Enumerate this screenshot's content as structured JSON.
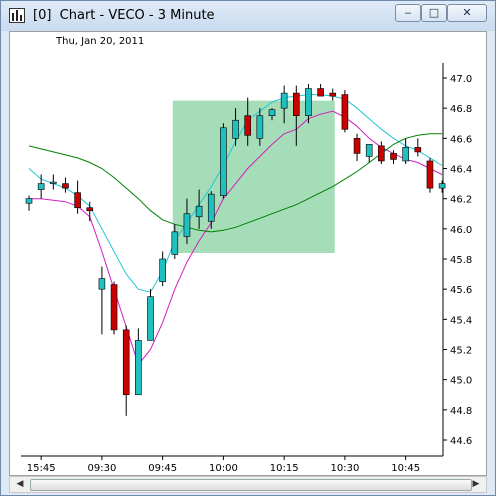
{
  "window": {
    "title": "[0]  Chart - VECO - 3 Minute",
    "minimize_glyph": "‒",
    "maximize_glyph": "□",
    "close_glyph": "✕",
    "icon": "chart-app-icon"
  },
  "chart_header": {
    "date": "Thu, Jan 20, 2011"
  },
  "scrollbar": {
    "left_arrow": "◀",
    "right_arrow": "▶"
  },
  "chart_data": {
    "type": "candlestick",
    "title": "",
    "xlabel": "",
    "ylabel": "",
    "ylim": [
      44.5,
      47.2
    ],
    "y_ticks": [
      44.6,
      44.8,
      45.0,
      45.2,
      45.4,
      45.6,
      45.8,
      46.0,
      46.2,
      46.4,
      46.6,
      46.8,
      47.0
    ],
    "x_tick_labels": [
      "15:45",
      "09:30",
      "09:45",
      "10:00",
      "10:15",
      "10:30",
      "10:45"
    ],
    "colors": {
      "up": "#20c0c0",
      "down": "#c80000",
      "wick": "#000000",
      "band_fast": "#20c8d8",
      "band_slow": "#d020c0",
      "trend": "#008000",
      "highlight": "#8fd4a8"
    },
    "highlight_zone": {
      "from": "09:48",
      "to": "10:27",
      "low": 45.84,
      "high": 46.85
    },
    "candles": [
      {
        "o": 46.17,
        "h": 46.22,
        "l": 46.12,
        "c": 46.2
      },
      {
        "o": 46.26,
        "h": 46.36,
        "l": 46.2,
        "c": 46.3
      },
      {
        "o": 46.3,
        "h": 46.36,
        "l": 46.26,
        "c": 46.31
      },
      {
        "o": 46.3,
        "h": 46.34,
        "l": 46.24,
        "c": 46.27
      },
      {
        "o": 46.24,
        "h": 46.32,
        "l": 46.1,
        "c": 46.14
      },
      {
        "o": 46.14,
        "h": 46.18,
        "l": 46.05,
        "c": 46.12
      },
      {
        "o": 45.6,
        "h": 45.75,
        "l": 45.3,
        "c": 45.67
      },
      {
        "o": 45.63,
        "h": 45.65,
        "l": 45.3,
        "c": 45.33
      },
      {
        "o": 45.33,
        "h": 45.36,
        "l": 44.76,
        "c": 44.9
      },
      {
        "o": 44.9,
        "h": 45.34,
        "l": 44.9,
        "c": 45.26
      },
      {
        "o": 45.26,
        "h": 45.6,
        "l": 45.26,
        "c": 45.55
      },
      {
        "o": 45.65,
        "h": 45.85,
        "l": 45.62,
        "c": 45.8
      },
      {
        "o": 45.83,
        "h": 46.03,
        "l": 45.8,
        "c": 45.98
      },
      {
        "o": 45.95,
        "h": 46.2,
        "l": 45.9,
        "c": 46.1
      },
      {
        "o": 46.08,
        "h": 46.26,
        "l": 46.0,
        "c": 46.15
      },
      {
        "o": 46.05,
        "h": 46.25,
        "l": 46.0,
        "c": 46.23
      },
      {
        "o": 46.22,
        "h": 46.7,
        "l": 46.2,
        "c": 46.67
      },
      {
        "o": 46.6,
        "h": 46.8,
        "l": 46.55,
        "c": 46.72
      },
      {
        "o": 46.75,
        "h": 46.87,
        "l": 46.55,
        "c": 46.62
      },
      {
        "o": 46.6,
        "h": 46.8,
        "l": 46.55,
        "c": 46.75
      },
      {
        "o": 46.75,
        "h": 46.8,
        "l": 46.72,
        "c": 46.79
      },
      {
        "o": 46.8,
        "h": 46.95,
        "l": 46.7,
        "c": 46.9
      },
      {
        "o": 46.9,
        "h": 46.95,
        "l": 46.55,
        "c": 46.75
      },
      {
        "o": 46.75,
        "h": 46.96,
        "l": 46.7,
        "c": 46.93
      },
      {
        "o": 46.93,
        "h": 46.96,
        "l": 46.88,
        "c": 46.88
      },
      {
        "o": 46.9,
        "h": 46.93,
        "l": 46.85,
        "c": 46.88
      },
      {
        "o": 46.89,
        "h": 46.92,
        "l": 46.64,
        "c": 46.66
      },
      {
        "o": 46.6,
        "h": 46.63,
        "l": 46.45,
        "c": 46.5
      },
      {
        "o": 46.48,
        "h": 46.56,
        "l": 46.44,
        "c": 46.56
      },
      {
        "o": 46.55,
        "h": 46.58,
        "l": 46.43,
        "c": 46.45
      },
      {
        "o": 46.5,
        "h": 46.52,
        "l": 46.43,
        "c": 46.46
      },
      {
        "o": 46.45,
        "h": 46.6,
        "l": 46.43,
        "c": 46.54
      },
      {
        "o": 46.54,
        "h": 46.6,
        "l": 46.48,
        "c": 46.51
      },
      {
        "o": 46.45,
        "h": 46.47,
        "l": 46.24,
        "c": 46.27
      },
      {
        "o": 46.27,
        "h": 46.32,
        "l": 46.24,
        "c": 46.3
      }
    ],
    "series": [
      {
        "values": [
          46.4,
          46.33,
          46.3,
          46.27,
          46.22,
          46.15,
          46.0,
          45.85,
          45.7,
          45.6,
          45.58,
          45.72,
          45.92,
          46.04,
          46.16,
          46.28,
          46.42,
          46.58,
          46.72,
          46.78,
          46.84,
          46.87,
          46.88,
          46.89,
          46.89,
          46.88,
          46.86,
          46.8,
          46.73,
          46.66,
          46.6,
          46.55,
          46.52,
          46.47,
          46.42
        ]
      },
      {
        "values": [
          46.2,
          46.2,
          46.19,
          46.18,
          46.15,
          46.08,
          45.85,
          45.6,
          45.35,
          45.1,
          45.2,
          45.38,
          45.6,
          45.78,
          45.92,
          46.04,
          46.2,
          46.3,
          46.4,
          46.48,
          46.56,
          46.63,
          46.66,
          46.73,
          46.76,
          46.78,
          46.74,
          46.68,
          46.6,
          46.54,
          46.5,
          46.46,
          46.44,
          46.4,
          46.36
        ]
      },
      {
        "values": [
          46.55,
          46.53,
          46.51,
          46.49,
          46.47,
          46.44,
          46.4,
          46.34,
          46.27,
          46.2,
          46.12,
          46.06,
          46.03,
          46.01,
          45.99,
          45.98,
          45.99,
          46.01,
          46.04,
          46.07,
          46.1,
          46.13,
          46.16,
          46.2,
          46.24,
          46.28,
          46.33,
          46.38,
          46.44,
          46.5,
          46.56,
          46.6,
          46.62,
          46.63,
          46.63
        ]
      }
    ]
  }
}
